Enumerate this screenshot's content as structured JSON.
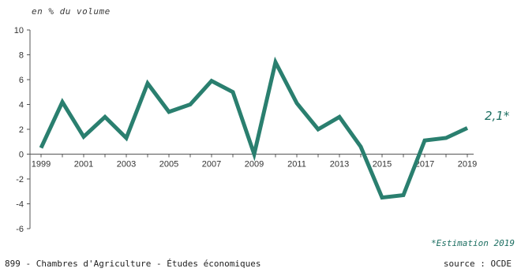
{
  "chart_data": {
    "type": "line",
    "ylabel": "en % du volume",
    "ylim": [
      -6,
      10
    ],
    "yticks": [
      10,
      8,
      6,
      4,
      2,
      0,
      -2,
      -4,
      -6
    ],
    "ytick_labels": [
      "10",
      "8",
      "6",
      "4",
      "2",
      "0",
      "-2",
      "-4",
      "-6"
    ],
    "x": [
      1999,
      2000,
      2001,
      2002,
      2003,
      2004,
      2005,
      2006,
      2007,
      2008,
      2009,
      2010,
      2011,
      2012,
      2013,
      2014,
      2015,
      2016,
      2017,
      2018,
      2019
    ],
    "xtick_labels": [
      "1999",
      "2001",
      "2003",
      "2005",
      "2007",
      "2009",
      "2011",
      "2013",
      "2015",
      "2017",
      "2019"
    ],
    "series": [
      {
        "values": [
          0.5,
          4.2,
          1.4,
          3.0,
          1.3,
          5.7,
          3.4,
          4.0,
          5.9,
          5.0,
          0.0,
          7.4,
          4.1,
          2.0,
          3.0,
          0.6,
          -3.5,
          -3.3,
          1.1,
          1.3,
          2.1
        ]
      }
    ],
    "annotation": "2,1*",
    "note": "*Estimation 2019",
    "grid": false,
    "color": "#2a7f6f"
  },
  "footer": {
    "left": "899 - Chambres d'Agriculture - Études économiques",
    "right": "source : OCDE"
  }
}
